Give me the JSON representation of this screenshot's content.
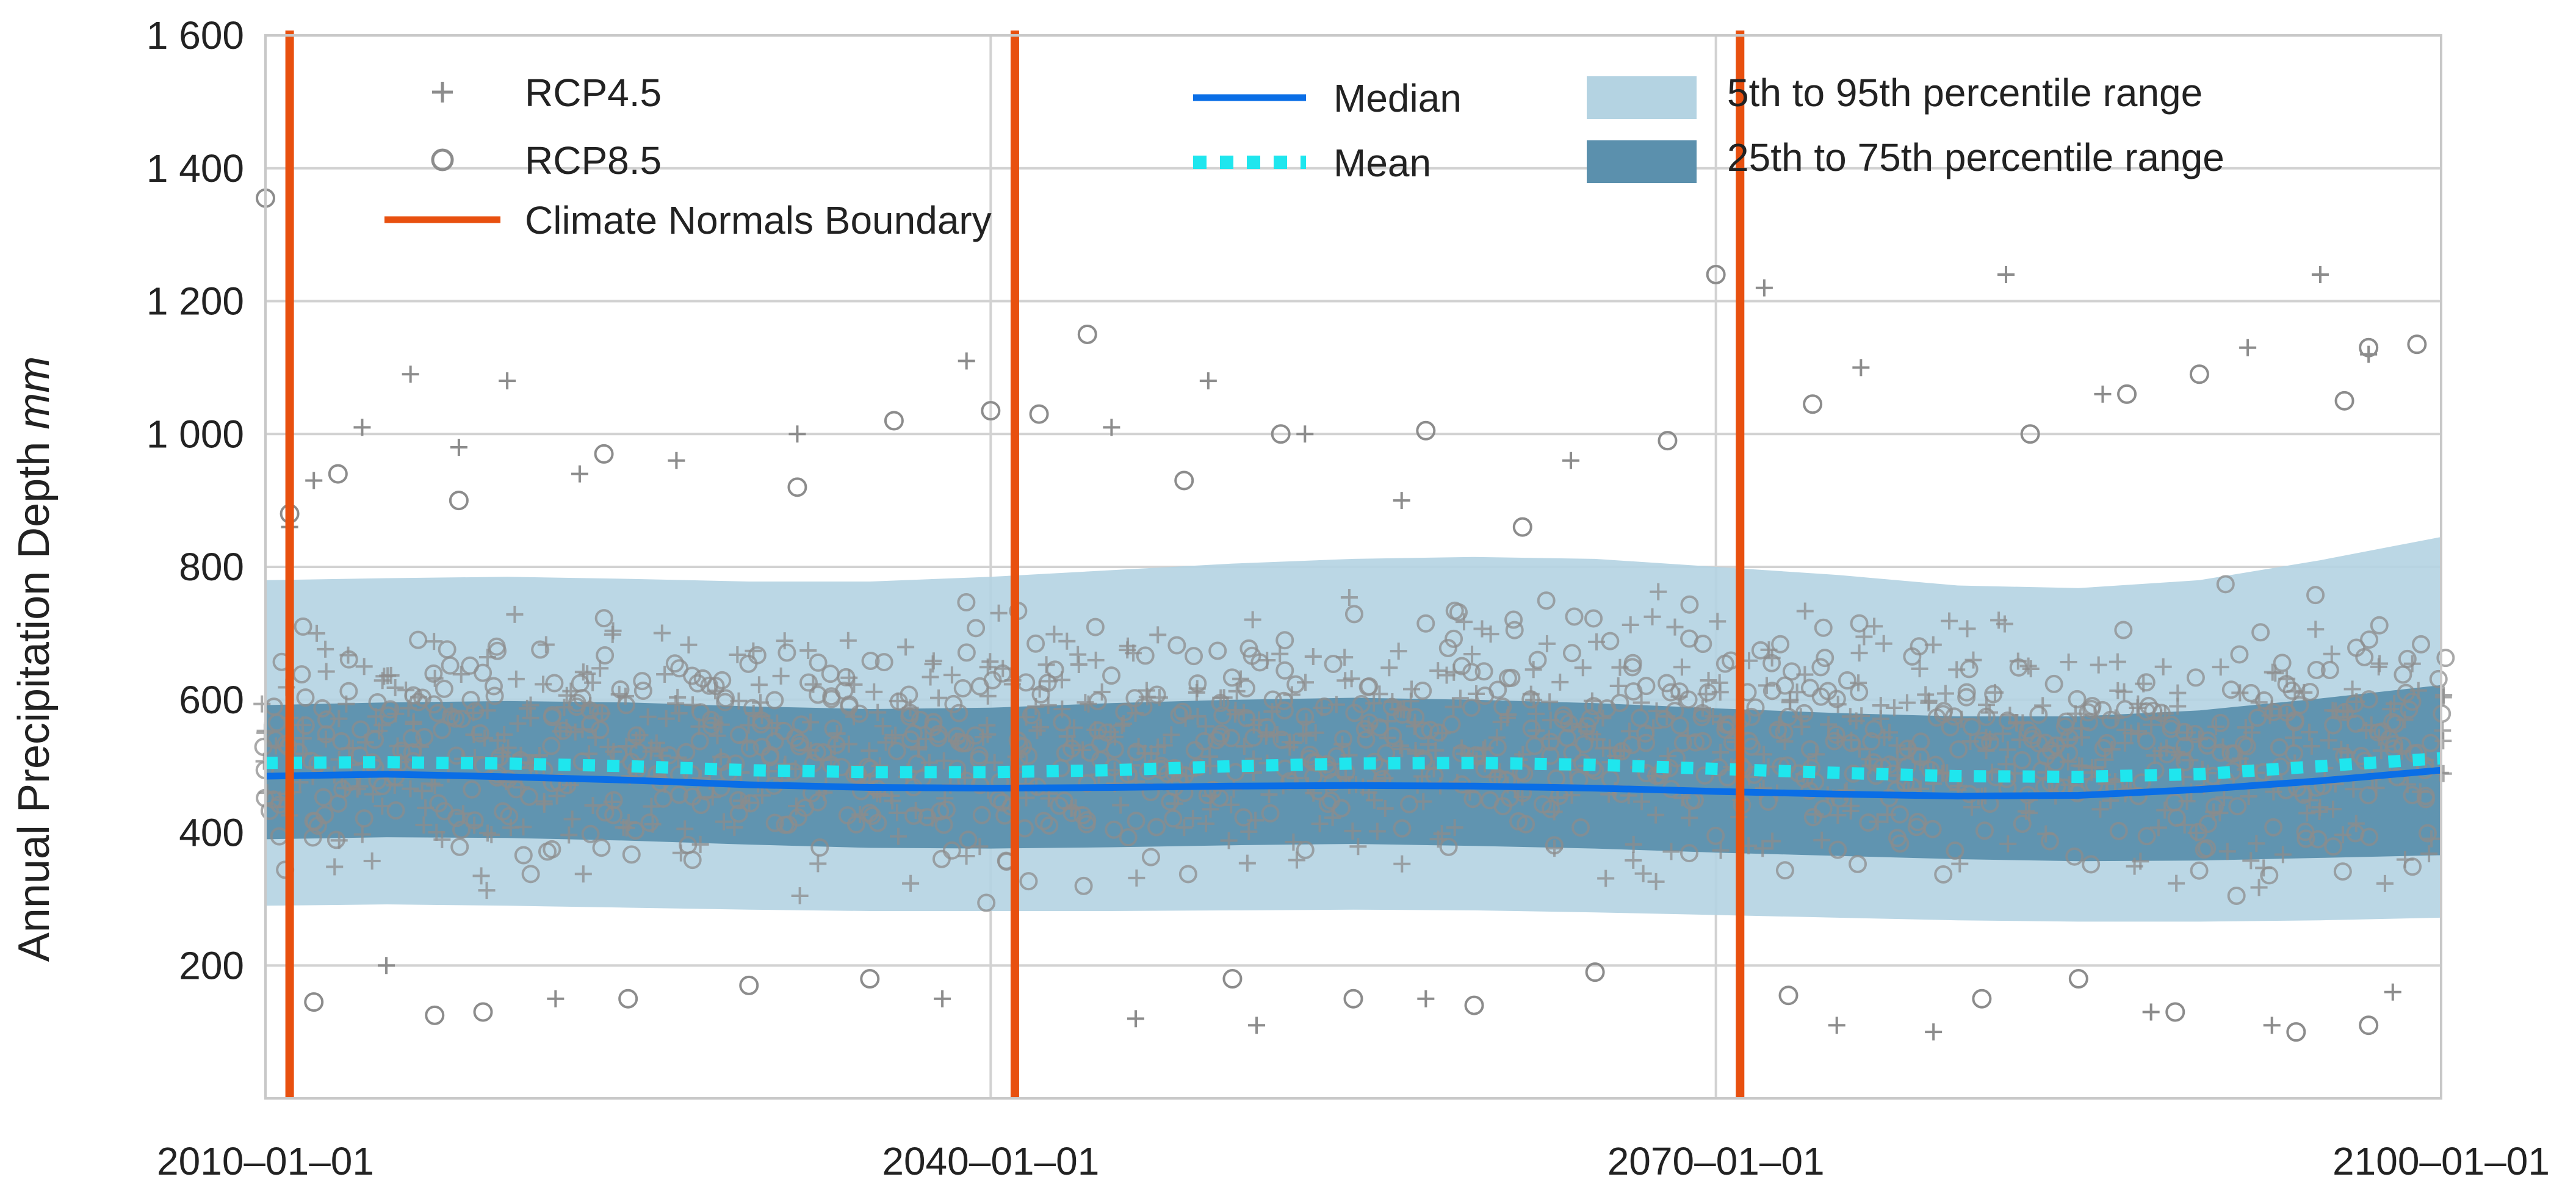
{
  "chart_data": {
    "type": "scatter",
    "title": "",
    "xlabel": "",
    "ylabel_prefix": "Annual Precipitation Depth ",
    "ylabel_unit": "mm",
    "ylabel_suffix": "",
    "x_range": [
      2010,
      2100
    ],
    "ylim": [
      0,
      1600
    ],
    "x_ticks": [
      {
        "value": 2010,
        "label": "2010–01–01"
      },
      {
        "value": 2040,
        "label": "2040–01–01"
      },
      {
        "value": 2070,
        "label": "2070–01–01"
      },
      {
        "value": 2100,
        "label": "2100–01–01"
      }
    ],
    "y_ticks": [
      {
        "value": 200,
        "label": "200"
      },
      {
        "value": 400,
        "label": "400"
      },
      {
        "value": 600,
        "label": "600"
      },
      {
        "value": 800,
        "label": "800"
      },
      {
        "value": 1000,
        "label": "1 000"
      },
      {
        "value": 1200,
        "label": "1 200"
      },
      {
        "value": 1400,
        "label": "1 400"
      },
      {
        "value": 1600,
        "label": "1 600"
      }
    ],
    "grid": true,
    "climate_normals_boundaries": [
      2011,
      2041,
      2071
    ],
    "years": [
      2010,
      2015,
      2020,
      2025,
      2030,
      2035,
      2040,
      2045,
      2050,
      2055,
      2060,
      2065,
      2070,
      2075,
      2080,
      2085,
      2090,
      2095,
      2100
    ],
    "series": [
      {
        "name": "Median",
        "color": "#0a6ee6",
        "values": [
          485,
          488,
          484,
          479,
          472,
          468,
          467,
          468,
          470,
          471,
          470,
          467,
          462,
          458,
          455,
          456,
          465,
          478,
          494
        ]
      },
      {
        "name": "Mean",
        "color": "#1fe6ee",
        "values": [
          505,
          506,
          504,
          500,
          494,
          491,
          491,
          494,
          500,
          504,
          505,
          502,
          496,
          490,
          485,
          484,
          488,
          500,
          512
        ]
      }
    ],
    "bands": [
      {
        "name": "5th to 95th percentile range",
        "color": "#b4d3e2",
        "lower": [
          290,
          292,
          290,
          287,
          284,
          282,
          282,
          282,
          283,
          284,
          283,
          280,
          276,
          272,
          268,
          266,
          266,
          268,
          272
        ],
        "upper": [
          780,
          783,
          785,
          782,
          778,
          778,
          785,
          795,
          805,
          812,
          815,
          812,
          800,
          788,
          772,
          768,
          780,
          810,
          845
        ]
      },
      {
        "name": "25th to 75th percentile range",
        "color": "#5b90ad",
        "lower": [
          390,
          393,
          392,
          388,
          382,
          377,
          376,
          378,
          381,
          383,
          380,
          376,
          370,
          365,
          360,
          357,
          358,
          362,
          366
        ],
        "upper": [
          592,
          596,
          598,
          596,
          590,
          586,
          588,
          595,
          600,
          603,
          600,
          595,
          587,
          580,
          575,
          575,
          584,
          602,
          622
        ]
      }
    ],
    "scatter_series": [
      {
        "name": "RCP4.5",
        "marker": "plus",
        "color": "#8c8c8c"
      },
      {
        "name": "RCP8.5",
        "marker": "circle",
        "color": "#8c8c8c"
      }
    ],
    "outliers": {
      "RCP4.5": [
        [
          2011,
          860
        ],
        [
          2012,
          930
        ],
        [
          2014,
          1010
        ],
        [
          2016,
          1090
        ],
        [
          2018,
          980
        ],
        [
          2020,
          1080
        ],
        [
          2023,
          940
        ],
        [
          2027,
          960
        ],
        [
          2032,
          1000
        ],
        [
          2039,
          1110
        ],
        [
          2045,
          1010
        ],
        [
          2049,
          1080
        ],
        [
          2053,
          1000
        ],
        [
          2057,
          900
        ],
        [
          2064,
          960
        ],
        [
          2072,
          1220
        ],
        [
          2076,
          1100
        ],
        [
          2082,
          1240
        ],
        [
          2086,
          1060
        ],
        [
          2092,
          1130
        ],
        [
          2095,
          1240
        ],
        [
          2097,
          1120
        ],
        [
          2015,
          200
        ],
        [
          2022,
          150
        ],
        [
          2038,
          150
        ],
        [
          2046,
          120
        ],
        [
          2051,
          110
        ],
        [
          2058,
          150
        ],
        [
          2075,
          110
        ],
        [
          2079,
          100
        ],
        [
          2088,
          130
        ],
        [
          2093,
          110
        ],
        [
          2098,
          160
        ]
      ],
      "RCP8.5": [
        [
          2010,
          1355
        ],
        [
          2011,
          880
        ],
        [
          2013,
          940
        ],
        [
          2018,
          900
        ],
        [
          2024,
          970
        ],
        [
          2032,
          920
        ],
        [
          2036,
          1020
        ],
        [
          2040,
          1035
        ],
        [
          2042,
          1030
        ],
        [
          2044,
          1150
        ],
        [
          2048,
          930
        ],
        [
          2052,
          1000
        ],
        [
          2058,
          1005
        ],
        [
          2062,
          860
        ],
        [
          2068,
          990
        ],
        [
          2070,
          1240
        ],
        [
          2074,
          1045
        ],
        [
          2083,
          1000
        ],
        [
          2087,
          1060
        ],
        [
          2090,
          1090
        ],
        [
          2096,
          1050
        ],
        [
          2097,
          1130
        ],
        [
          2099,
          1135
        ],
        [
          2012,
          145
        ],
        [
          2017,
          125
        ],
        [
          2019,
          130
        ],
        [
          2025,
          150
        ],
        [
          2030,
          170
        ],
        [
          2035,
          180
        ],
        [
          2050,
          180
        ],
        [
          2055,
          150
        ],
        [
          2060,
          140
        ],
        [
          2065,
          190
        ],
        [
          2073,
          155
        ],
        [
          2081,
          150
        ],
        [
          2085,
          180
        ],
        [
          2089,
          130
        ],
        [
          2094,
          100
        ],
        [
          2097,
          110
        ]
      ]
    },
    "point_cloud": {
      "center_fraction": 0.92,
      "seed": 7
    }
  }
}
